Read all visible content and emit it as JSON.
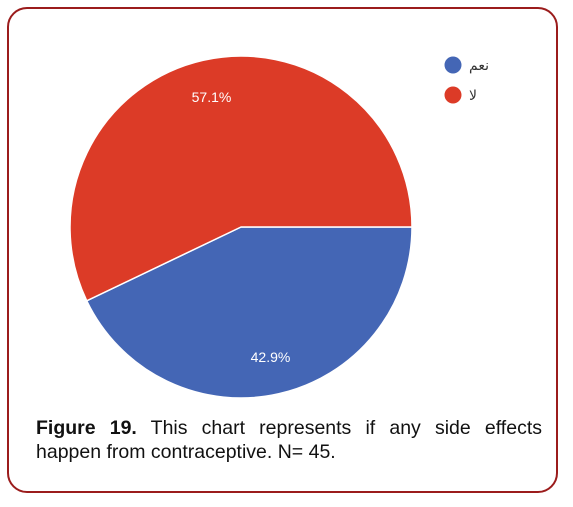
{
  "chart_data": {
    "type": "pie",
    "categories": [
      "نعم",
      "لا"
    ],
    "values": [
      42.9,
      57.1
    ],
    "labels": [
      "42.9%",
      "57.1%"
    ],
    "colors": [
      "#4466b5",
      "#dc3b27"
    ],
    "legend_position": "top-right"
  },
  "caption": {
    "label": "Figure 19.",
    "text": " This chart represents if any side effects happen from contraceptive. N= 45."
  }
}
